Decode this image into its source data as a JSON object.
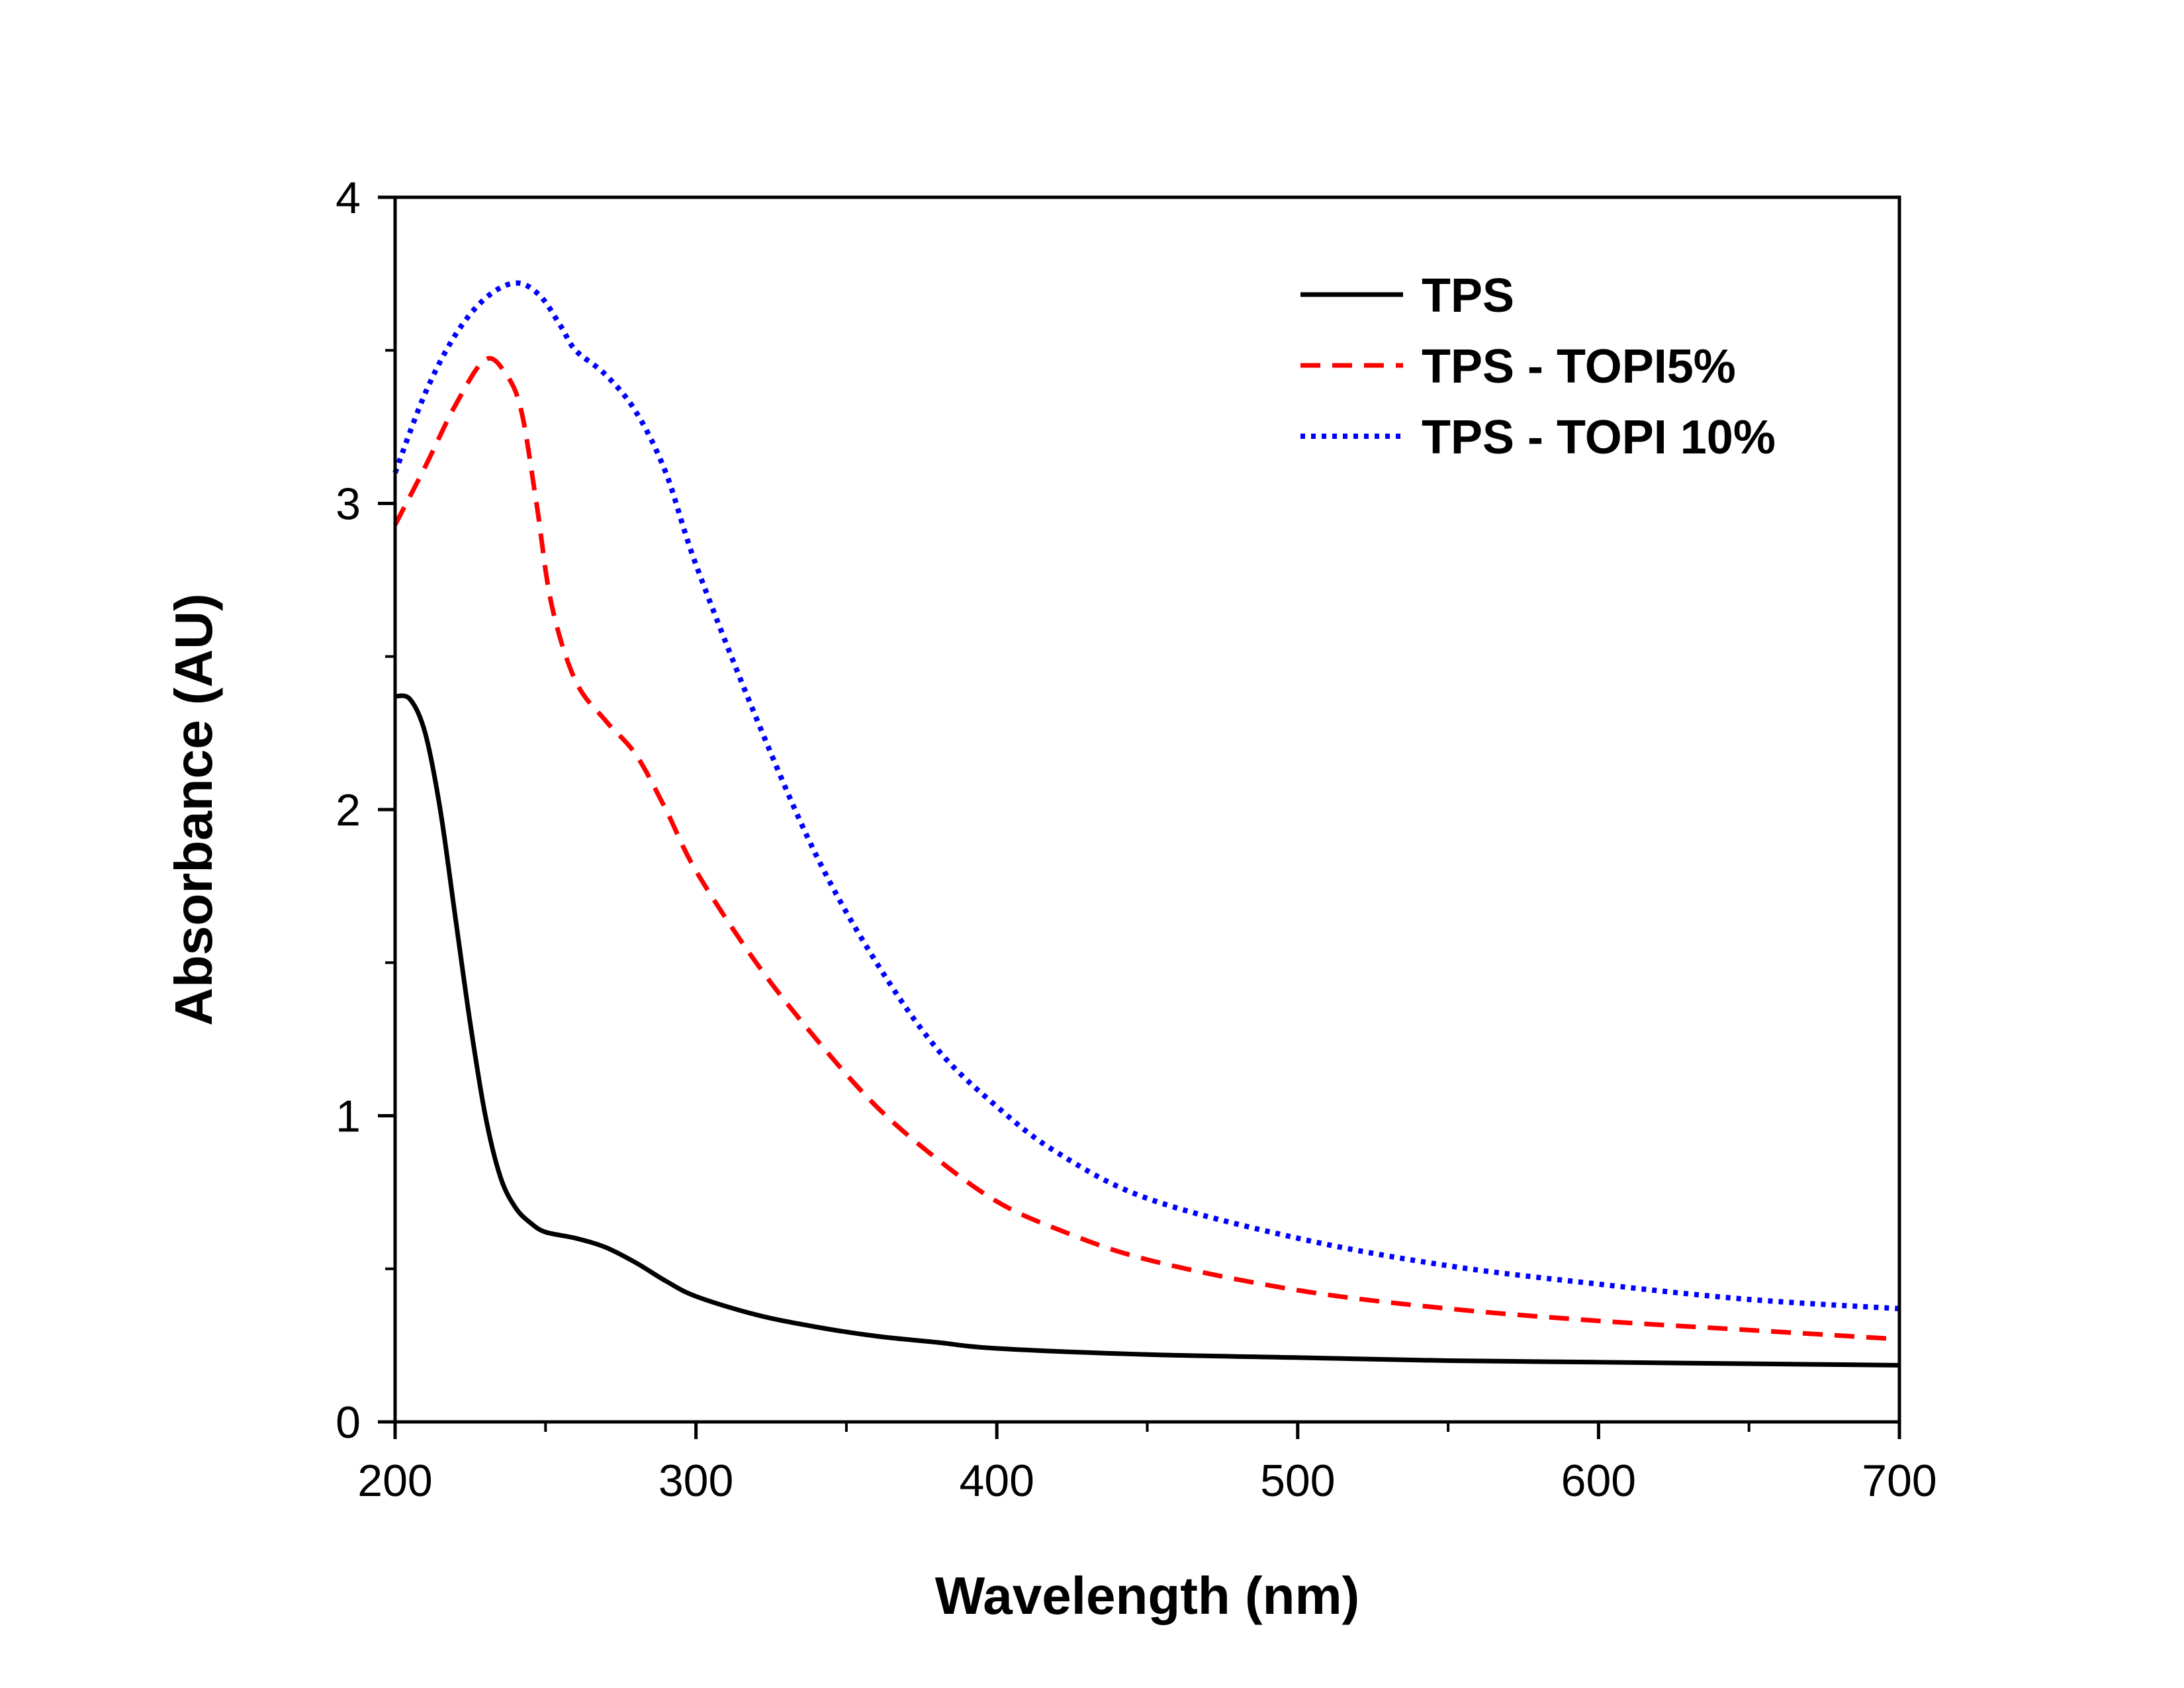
{
  "chart_data": {
    "type": "line",
    "title": "",
    "xlabel": "Wavelength (nm)",
    "ylabel": "Absorbance (AU)",
    "xlim": [
      200,
      700
    ],
    "ylim": [
      0,
      4
    ],
    "xticks": [
      200,
      300,
      400,
      500,
      600,
      700
    ],
    "yticks": [
      0,
      1,
      2,
      3,
      4
    ],
    "x_minor_step": 50,
    "y_minor_step": 0.5,
    "grid": false,
    "legend_position": "top-right",
    "series": [
      {
        "name": "TPS",
        "color": "#000000",
        "style": "solid",
        "points": [
          [
            200,
            2.37
          ],
          [
            205,
            2.36
          ],
          [
            210,
            2.25
          ],
          [
            215,
            2.0
          ],
          [
            220,
            1.65
          ],
          [
            225,
            1.3
          ],
          [
            230,
            1.0
          ],
          [
            235,
            0.8
          ],
          [
            240,
            0.7
          ],
          [
            245,
            0.65
          ],
          [
            250,
            0.62
          ],
          [
            260,
            0.6
          ],
          [
            270,
            0.57
          ],
          [
            280,
            0.52
          ],
          [
            290,
            0.46
          ],
          [
            300,
            0.41
          ],
          [
            320,
            0.35
          ],
          [
            340,
            0.31
          ],
          [
            360,
            0.28
          ],
          [
            380,
            0.26
          ],
          [
            400,
            0.24
          ],
          [
            450,
            0.22
          ],
          [
            500,
            0.21
          ],
          [
            550,
            0.2
          ],
          [
            600,
            0.195
          ],
          [
            650,
            0.19
          ],
          [
            700,
            0.185
          ]
        ]
      },
      {
        "name": "TPS - TOPI5%",
        "color": "#ff0000",
        "style": "dashed",
        "points": [
          [
            200,
            2.93
          ],
          [
            210,
            3.12
          ],
          [
            220,
            3.32
          ],
          [
            230,
            3.47
          ],
          [
            237,
            3.42
          ],
          [
            242,
            3.3
          ],
          [
            247,
            3.0
          ],
          [
            252,
            2.67
          ],
          [
            260,
            2.42
          ],
          [
            270,
            2.29
          ],
          [
            280,
            2.18
          ],
          [
            290,
            2.0
          ],
          [
            300,
            1.8
          ],
          [
            320,
            1.5
          ],
          [
            340,
            1.25
          ],
          [
            360,
            1.03
          ],
          [
            380,
            0.86
          ],
          [
            400,
            0.72
          ],
          [
            420,
            0.63
          ],
          [
            450,
            0.53
          ],
          [
            500,
            0.43
          ],
          [
            550,
            0.37
          ],
          [
            600,
            0.33
          ],
          [
            650,
            0.3
          ],
          [
            700,
            0.27
          ]
        ]
      },
      {
        "name": "TPS - TOPI 10%",
        "color": "#0000ff",
        "style": "dotted",
        "points": [
          [
            200,
            3.1
          ],
          [
            210,
            3.36
          ],
          [
            220,
            3.55
          ],
          [
            230,
            3.67
          ],
          [
            240,
            3.72
          ],
          [
            248,
            3.68
          ],
          [
            255,
            3.58
          ],
          [
            260,
            3.5
          ],
          [
            270,
            3.42
          ],
          [
            280,
            3.3
          ],
          [
            290,
            3.1
          ],
          [
            300,
            2.8
          ],
          [
            320,
            2.3
          ],
          [
            340,
            1.85
          ],
          [
            360,
            1.5
          ],
          [
            380,
            1.22
          ],
          [
            400,
            1.03
          ],
          [
            420,
            0.88
          ],
          [
            450,
            0.73
          ],
          [
            500,
            0.6
          ],
          [
            550,
            0.51
          ],
          [
            600,
            0.45
          ],
          [
            650,
            0.4
          ],
          [
            700,
            0.37
          ]
        ]
      }
    ]
  }
}
